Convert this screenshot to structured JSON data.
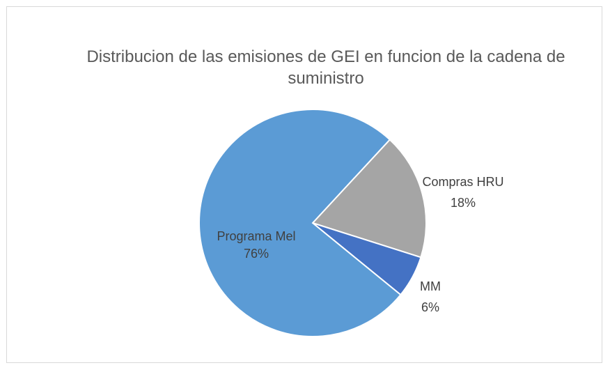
{
  "chart_data": {
    "type": "pie",
    "title": "Distribucion de las emisiones de GEI en funcion de la cadena de suministro",
    "categories": [
      "Compras HRU",
      "MM",
      "Programa Mel"
    ],
    "values": [
      18,
      6,
      76
    ],
    "value_labels": [
      "18%",
      "6%",
      "76%"
    ],
    "colors": [
      "#a5a5a5",
      "#4472c4",
      "#5b9bd5"
    ]
  }
}
